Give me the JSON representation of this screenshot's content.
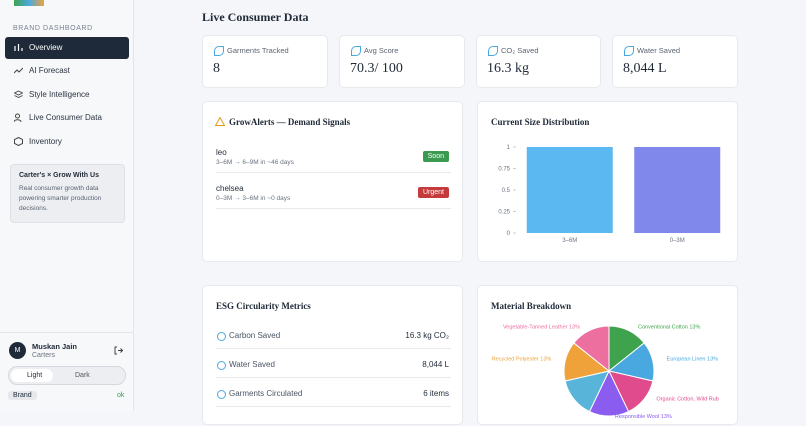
{
  "sidebar": {
    "section_label": "BRAND DASHBOARD",
    "nav": [
      "Overview",
      "AI Forecast",
      "Style Intelligence",
      "Live Consumer Data",
      "Inventory"
    ],
    "info": {
      "title": "Carter's × Grow With Us",
      "text": "Real consumer growth data powering smarter production decisions."
    },
    "user": {
      "initial": "M",
      "name": "Muskan Jain",
      "org": "Carters"
    },
    "theme": [
      "Light",
      "Dark"
    ],
    "role": "Brand",
    "status": "ok"
  },
  "page_title": "Live Consumer Data",
  "stats": [
    {
      "label": "Garments Tracked",
      "value": "8"
    },
    {
      "label": "Avg Score",
      "value": "70.3/ 100"
    },
    {
      "label": "CO₂ Saved",
      "value": "16.3 kg"
    },
    {
      "label": "Water Saved",
      "value": "8,044 L"
    }
  ],
  "alerts": {
    "title": "GrowAlerts — Demand Signals",
    "items": [
      {
        "name": "leo",
        "detail": "3–6M → 6–9M in ~46 days",
        "badge": "Soon"
      },
      {
        "name": "chelsea",
        "detail": "0–3M → 3–6M in ~0 days",
        "badge": "Urgent"
      }
    ]
  },
  "size_chart": {
    "type": "bar",
    "title": "Current Size Distribution",
    "categories": [
      "3–6M",
      "0–3M"
    ],
    "values": [
      1,
      1
    ],
    "colors": [
      "#5bb8f0",
      "#8088ec"
    ],
    "ylim": [
      0,
      1
    ],
    "yticks": [
      0,
      0.25,
      0.5,
      0.75,
      1
    ]
  },
  "esg": {
    "title": "ESG Circularity Metrics",
    "rows": [
      {
        "label": "Carbon Saved",
        "value": "16.3 kg CO₂"
      },
      {
        "label": "Water Saved",
        "value": "8,044 L"
      },
      {
        "label": "Garments Circulated",
        "value": "6 items"
      }
    ]
  },
  "material_chart": {
    "type": "pie",
    "title": "Material Breakdown",
    "labels": [
      "Conventional Cotton 13%",
      "European Linen 13%",
      "Organic Cotton, Wild Rub",
      "Responsible Wool 13%",
      null,
      "Recycled Polyester 13%",
      "Vegetable-Tanned Leather 13%"
    ],
    "values": [
      13,
      13,
      13,
      13,
      13,
      13,
      13
    ],
    "colors": [
      "#3fa34d",
      "#4aa8e0",
      "#e04b8d",
      "#8b5cf0",
      "#58b4d8",
      "#f0a23a",
      "#ec6fa0"
    ]
  }
}
